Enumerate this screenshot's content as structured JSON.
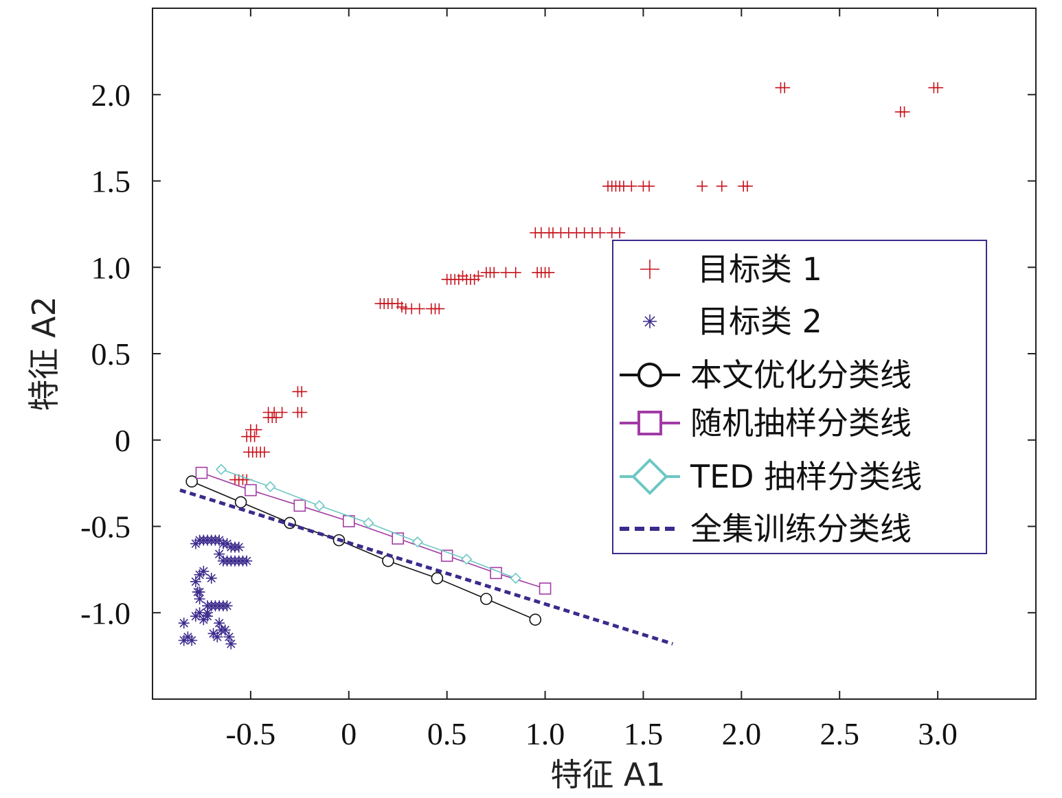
{
  "chart_data": {
    "type": "scatter",
    "title": "",
    "xlabel": "特征 A1",
    "ylabel": "特征 A2",
    "xlim": [
      -1.0,
      3.5
    ],
    "ylim": [
      -1.5,
      2.5
    ],
    "x_ticks": [
      -0.5,
      0,
      0.5,
      1.0,
      1.5,
      2.0,
      2.5,
      3.0
    ],
    "x_tick_labels": [
      "-0.5",
      "0",
      "0.5",
      "1.0",
      "1.5",
      "2.0",
      "2.5",
      "3.0"
    ],
    "y_ticks": [
      -1.0,
      -0.5,
      0,
      0.5,
      1.0,
      1.5,
      2.0
    ],
    "y_tick_labels": [
      "-1.0",
      "-0.5",
      "0",
      "0.5",
      "1.0",
      "1.5",
      "2.0"
    ],
    "grid": false,
    "legend_position": "right",
    "series": [
      {
        "name": "目标类 1",
        "kind": "scatter",
        "marker": "plus",
        "color": "#c8141e",
        "points": [
          [
            -0.52,
            0.02
          ],
          [
            -0.5,
            0.02
          ],
          [
            -0.48,
            0.02
          ],
          [
            -0.5,
            0.06
          ],
          [
            -0.47,
            0.06
          ],
          [
            -0.51,
            -0.07
          ],
          [
            -0.49,
            -0.07
          ],
          [
            -0.47,
            -0.07
          ],
          [
            -0.45,
            -0.07
          ],
          [
            -0.43,
            -0.07
          ],
          [
            -0.58,
            -0.23
          ],
          [
            -0.56,
            -0.23
          ],
          [
            -0.54,
            -0.23
          ],
          [
            -0.52,
            -0.23
          ],
          [
            -0.41,
            0.13
          ],
          [
            -0.39,
            0.13
          ],
          [
            -0.37,
            0.13
          ],
          [
            -0.41,
            0.16
          ],
          [
            -0.38,
            0.16
          ],
          [
            -0.34,
            0.16
          ],
          [
            -0.26,
            0.16
          ],
          [
            -0.24,
            0.16
          ],
          [
            -0.26,
            0.28
          ],
          [
            -0.24,
            0.28
          ],
          [
            0.16,
            0.79
          ],
          [
            0.18,
            0.79
          ],
          [
            0.2,
            0.79
          ],
          [
            0.22,
            0.79
          ],
          [
            0.25,
            0.79
          ],
          [
            0.27,
            0.77
          ],
          [
            0.29,
            0.76
          ],
          [
            0.32,
            0.76
          ],
          [
            0.36,
            0.76
          ],
          [
            0.42,
            0.76
          ],
          [
            0.44,
            0.76
          ],
          [
            0.46,
            0.76
          ],
          [
            0.5,
            0.93
          ],
          [
            0.52,
            0.93
          ],
          [
            0.54,
            0.93
          ],
          [
            0.56,
            0.93
          ],
          [
            0.58,
            0.95
          ],
          [
            0.6,
            0.93
          ],
          [
            0.62,
            0.93
          ],
          [
            0.64,
            0.93
          ],
          [
            0.66,
            0.95
          ],
          [
            0.7,
            0.97
          ],
          [
            0.72,
            0.97
          ],
          [
            0.74,
            0.97
          ],
          [
            0.8,
            0.97
          ],
          [
            0.85,
            0.97
          ],
          [
            0.96,
            0.97
          ],
          [
            0.98,
            0.97
          ],
          [
            1.0,
            0.97
          ],
          [
            1.02,
            0.97
          ],
          [
            0.95,
            1.2
          ],
          [
            0.98,
            1.2
          ],
          [
            1.02,
            1.2
          ],
          [
            1.04,
            1.2
          ],
          [
            1.08,
            1.2
          ],
          [
            1.12,
            1.2
          ],
          [
            1.16,
            1.2
          ],
          [
            1.2,
            1.2
          ],
          [
            1.24,
            1.2
          ],
          [
            1.28,
            1.2
          ],
          [
            1.34,
            1.2
          ],
          [
            1.38,
            1.2
          ],
          [
            1.32,
            1.47
          ],
          [
            1.34,
            1.47
          ],
          [
            1.36,
            1.47
          ],
          [
            1.38,
            1.47
          ],
          [
            1.4,
            1.47
          ],
          [
            1.44,
            1.47
          ],
          [
            1.5,
            1.47
          ],
          [
            1.53,
            1.47
          ],
          [
            1.8,
            1.47
          ],
          [
            1.9,
            1.47
          ],
          [
            2.01,
            1.47
          ],
          [
            2.03,
            1.47
          ],
          [
            2.2,
            2.04
          ],
          [
            2.22,
            2.04
          ],
          [
            2.81,
            1.9
          ],
          [
            2.83,
            1.9
          ],
          [
            2.98,
            2.04
          ],
          [
            3.0,
            2.04
          ]
        ]
      },
      {
        "name": "目标类 2",
        "kind": "scatter",
        "marker": "asterisk",
        "color": "#3c2a8c",
        "points": [
          [
            -0.84,
            -1.06
          ],
          [
            -0.82,
            -1.14
          ],
          [
            -0.84,
            -1.16
          ],
          [
            -0.8,
            -1.16
          ],
          [
            -0.78,
            -1.02
          ],
          [
            -0.76,
            -1.0
          ],
          [
            -0.74,
            -1.04
          ],
          [
            -0.76,
            -0.92
          ],
          [
            -0.77,
            -0.88
          ],
          [
            -0.78,
            -0.82
          ],
          [
            -0.76,
            -0.78
          ],
          [
            -0.74,
            -0.76
          ],
          [
            -0.7,
            -0.8
          ],
          [
            -0.72,
            -0.96
          ],
          [
            -0.7,
            -0.96
          ],
          [
            -0.68,
            -0.96
          ],
          [
            -0.66,
            -0.96
          ],
          [
            -0.64,
            -0.96
          ],
          [
            -0.62,
            -0.96
          ],
          [
            -0.72,
            -1.02
          ],
          [
            -0.69,
            -1.12
          ],
          [
            -0.67,
            -1.14
          ],
          [
            -0.65,
            -1.1
          ],
          [
            -0.63,
            -1.1
          ],
          [
            -0.61,
            -1.14
          ],
          [
            -0.6,
            -1.18
          ],
          [
            -0.66,
            -1.06
          ],
          [
            -0.78,
            -0.6
          ],
          [
            -0.76,
            -0.58
          ],
          [
            -0.74,
            -0.58
          ],
          [
            -0.72,
            -0.58
          ],
          [
            -0.7,
            -0.58
          ],
          [
            -0.68,
            -0.58
          ],
          [
            -0.66,
            -0.58
          ],
          [
            -0.64,
            -0.6
          ],
          [
            -0.62,
            -0.6
          ],
          [
            -0.6,
            -0.62
          ],
          [
            -0.58,
            -0.62
          ],
          [
            -0.56,
            -0.62
          ],
          [
            -0.66,
            -0.66
          ],
          [
            -0.64,
            -0.7
          ],
          [
            -0.62,
            -0.7
          ],
          [
            -0.6,
            -0.7
          ],
          [
            -0.58,
            -0.7
          ],
          [
            -0.56,
            -0.7
          ],
          [
            -0.54,
            -0.7
          ],
          [
            -0.52,
            -0.7
          ],
          [
            -0.76,
            -0.88
          ],
          [
            -0.72,
            -1.0
          ]
        ]
      },
      {
        "name": "本文优化分类线",
        "kind": "line",
        "marker": "circle",
        "color": "#111111",
        "points": [
          [
            -0.8,
            -0.24
          ],
          [
            -0.55,
            -0.36
          ],
          [
            -0.3,
            -0.48
          ],
          [
            -0.05,
            -0.58
          ],
          [
            0.2,
            -0.7
          ],
          [
            0.45,
            -0.8
          ],
          [
            0.7,
            -0.92
          ],
          [
            0.95,
            -1.04
          ]
        ]
      },
      {
        "name": "随机抽样分类线",
        "kind": "line",
        "marker": "square",
        "color": "#a23ba6",
        "points": [
          [
            -0.75,
            -0.19
          ],
          [
            -0.5,
            -0.29
          ],
          [
            -0.25,
            -0.38
          ],
          [
            0.0,
            -0.47
          ],
          [
            0.25,
            -0.57
          ],
          [
            0.5,
            -0.67
          ],
          [
            0.75,
            -0.77
          ],
          [
            1.0,
            -0.86
          ]
        ]
      },
      {
        "name": "TED 抽样分类线",
        "kind": "line",
        "marker": "diamond",
        "color": "#6cc8c4",
        "points": [
          [
            -0.65,
            -0.17
          ],
          [
            -0.4,
            -0.27
          ],
          [
            -0.15,
            -0.38
          ],
          [
            0.1,
            -0.48
          ],
          [
            0.35,
            -0.59
          ],
          [
            0.6,
            -0.69
          ],
          [
            0.85,
            -0.8
          ]
        ]
      },
      {
        "name": "全集训练分类线",
        "kind": "line",
        "marker": "none",
        "dashed": true,
        "color": "#3c2a8c",
        "points": [
          [
            -0.86,
            -0.29
          ],
          [
            1.65,
            -1.18
          ]
        ]
      }
    ]
  }
}
